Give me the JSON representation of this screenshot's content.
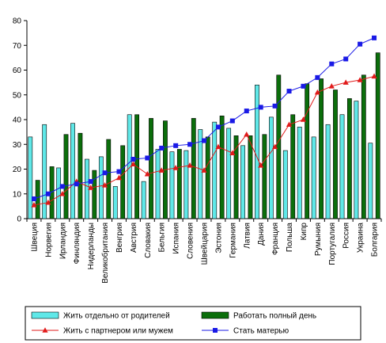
{
  "chart_data": {
    "type": "bar",
    "title": "",
    "xlabel": "",
    "ylabel": "",
    "ylim": [
      0,
      80
    ],
    "yticks": [
      0,
      10,
      20,
      30,
      40,
      50,
      60,
      70,
      80
    ],
    "grid": false,
    "legend_position": "bottom",
    "categories": [
      "Швеция",
      "Норвегия",
      "Ирландия",
      "Финляндия",
      "Нидерланды",
      "Великобритания",
      "Венгрия",
      "Австрия",
      "Словакия",
      "Бельгия",
      "Испания",
      "Словения",
      "Швейцария",
      "Эстония",
      "Германия",
      "Латвия",
      "Дания",
      "Франция",
      "Польша",
      "Кипр",
      "Румыния",
      "Португалия",
      "Россия",
      "Украина",
      "Болгария"
    ],
    "series": [
      {
        "name": "Жить отдельно от родителей",
        "kind": "bar",
        "color": "#5fe8e8",
        "values": [
          33,
          38,
          20.5,
          38.5,
          24,
          25,
          13,
          42,
          15,
          28,
          27,
          27.5,
          36,
          39,
          36.5,
          29.5,
          54,
          41,
          27.5,
          37,
          33,
          38,
          42,
          47.5,
          30.5
        ]
      },
      {
        "name": "Работать полный день",
        "kind": "bar",
        "color": "#0b6e0b",
        "values": [
          15.5,
          21,
          34,
          34.5,
          19.5,
          32,
          29.5,
          42,
          40.5,
          39.5,
          28,
          40.5,
          33,
          41.5,
          33.5,
          33.5,
          34,
          58,
          42,
          54.5,
          56.5,
          52,
          48.5,
          58,
          67
        ]
      },
      {
        "name": "Жить с партнером или мужем",
        "kind": "line",
        "color": "#e11a1a",
        "marker": "triangle",
        "values": [
          5.5,
          6.5,
          10,
          15,
          12.5,
          13.5,
          16.5,
          22,
          18,
          19.5,
          20.5,
          21.5,
          19.5,
          29,
          26.5,
          34,
          21.5,
          29,
          38,
          40,
          51,
          53.5,
          55,
          56,
          57.5
        ]
      },
      {
        "name": "Стать матерью",
        "kind": "line",
        "color": "#1a1ae6",
        "marker": "square",
        "values": [
          8,
          10,
          13,
          14,
          15,
          18.5,
          19,
          24,
          24.5,
          28.5,
          29.5,
          30,
          31.5,
          37,
          39.5,
          43.5,
          45,
          45.5,
          51.5,
          53.5,
          57,
          62.5,
          64.5,
          70.5,
          73
        ]
      }
    ]
  }
}
